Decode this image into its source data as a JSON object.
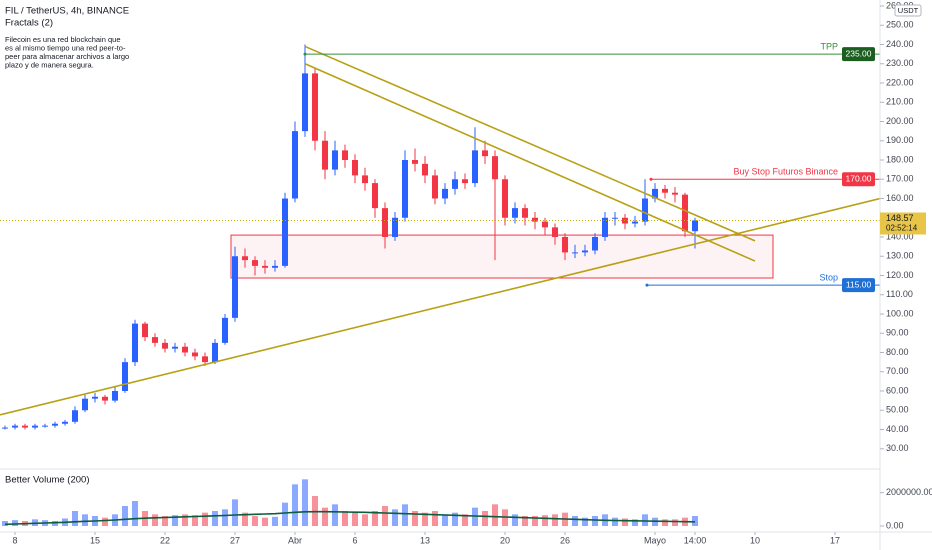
{
  "chart_data": {
    "type": "candlestick",
    "title": "FIL / TetherUS, 4h, BINANCE",
    "indicator": "Fractals (2)",
    "description": [
      "Filecoin es una red blockchain que",
      "es al mismo tiempo una red peer-to-",
      "peer para almacenar archivos a largo",
      "plazo y de manera segura."
    ],
    "currency": "USDT",
    "countdown": "02:52:14",
    "up_color": "#2962ff",
    "down_color": "#f23645",
    "open": [
      40.5,
      41,
      42,
      41,
      42,
      42,
      43,
      44,
      50,
      56,
      57,
      55,
      60,
      75,
      95,
      88,
      85,
      82,
      83,
      80,
      78,
      75,
      85,
      98,
      130,
      128,
      125,
      124,
      125,
      160,
      195,
      225,
      190,
      175,
      185,
      180,
      172,
      168,
      155,
      140,
      150,
      180,
      178,
      172,
      160,
      165,
      170,
      168,
      185,
      182,
      170,
      150,
      155,
      150,
      148,
      145,
      140,
      132,
      132,
      133,
      140,
      150,
      150,
      147,
      148,
      160,
      165,
      163,
      162,
      143
    ],
    "high": [
      42,
      43,
      43,
      43,
      43,
      44,
      45,
      52,
      58,
      59,
      58,
      62,
      77,
      97,
      96,
      90,
      87,
      85,
      85,
      82,
      80,
      87,
      100,
      135,
      134,
      130,
      128,
      128,
      163,
      200,
      240,
      228,
      195,
      190,
      188,
      183,
      176,
      170,
      158,
      153,
      185,
      186,
      182,
      175,
      168,
      174,
      173,
      197,
      190,
      185,
      172,
      158,
      157,
      153,
      150,
      147,
      142,
      136,
      136,
      142,
      153,
      153,
      152,
      151,
      170,
      168,
      167,
      166,
      163,
      150
    ],
    "low": [
      40,
      40,
      40,
      40,
      41,
      41,
      42,
      43,
      49,
      54,
      53,
      54,
      59,
      73,
      86,
      83,
      80,
      80,
      78,
      76,
      73,
      74,
      84,
      96,
      124,
      120,
      121,
      122,
      124,
      158,
      192,
      185,
      170,
      172,
      176,
      168,
      164,
      150,
      134,
      138,
      148,
      174,
      168,
      157,
      157,
      162,
      165,
      166,
      178,
      128,
      146,
      147,
      146,
      144,
      141,
      136,
      128,
      129,
      130,
      131,
      138,
      146,
      144,
      145,
      146,
      158,
      160,
      158,
      140,
      134
    ],
    "close": [
      41,
      42,
      41,
      42,
      42,
      43,
      44,
      50,
      56,
      57,
      55,
      60,
      75,
      95,
      88,
      85,
      82,
      83,
      80,
      78,
      75,
      85,
      98,
      130,
      128,
      125,
      124,
      125,
      160,
      195,
      225,
      190,
      175,
      185,
      180,
      172,
      168,
      155,
      140,
      150,
      180,
      178,
      172,
      160,
      165,
      170,
      168,
      185,
      182,
      170,
      150,
      155,
      150,
      148,
      145,
      140,
      132,
      132,
      133,
      140,
      150,
      150,
      147,
      148,
      160,
      165,
      163,
      162,
      143,
      148.57
    ],
    "xlim": [
      -0.5,
      87.5
    ],
    "xticks": [
      {
        "value": 1,
        "label": "8"
      },
      {
        "value": 9,
        "label": "15"
      },
      {
        "value": 16,
        "label": "22"
      },
      {
        "value": 23,
        "label": "27"
      },
      {
        "value": 29,
        "label": "Abr"
      },
      {
        "value": 35,
        "label": "6"
      },
      {
        "value": 42,
        "label": "13"
      },
      {
        "value": 50,
        "label": "20"
      },
      {
        "value": 56,
        "label": "26"
      },
      {
        "value": 65,
        "label": "Mayo"
      },
      {
        "value": 69,
        "label": "14:00"
      },
      {
        "value": 75,
        "label": "10"
      },
      {
        "value": 83,
        "label": "17"
      }
    ],
    "ylim": [
      20,
      260
    ],
    "yticks": [
      {
        "value": 30,
        "label": "30.00"
      },
      {
        "value": 40,
        "label": "40.00"
      },
      {
        "value": 50,
        "label": "50.00"
      },
      {
        "value": 60,
        "label": "60.00"
      },
      {
        "value": 70,
        "label": "70.00"
      },
      {
        "value": 80,
        "label": "80.00"
      },
      {
        "value": 90,
        "label": "90.00"
      },
      {
        "value": 100,
        "label": "100.00"
      },
      {
        "value": 110,
        "label": "110.00"
      },
      {
        "value": 120,
        "label": "120.00"
      },
      {
        "value": 130,
        "label": "130.00"
      },
      {
        "value": 140,
        "label": "140.00"
      },
      {
        "value": 150,
        "label": "150.00"
      },
      {
        "value": 160,
        "label": "160.00"
      },
      {
        "value": 170,
        "label": "170.00"
      },
      {
        "value": 180,
        "label": "180.00"
      },
      {
        "value": 190,
        "label": "190.00"
      },
      {
        "value": 200,
        "label": "200.00"
      },
      {
        "value": 210,
        "label": "210.00"
      },
      {
        "value": 220,
        "label": "220.00"
      },
      {
        "value": 230,
        "label": "230.00"
      },
      {
        "value": 240,
        "label": "240.00"
      },
      {
        "value": 250,
        "label": "250.00"
      },
      {
        "value": 260,
        "label": "260.00"
      }
    ],
    "trendlines": [
      {
        "color": "#b8a014",
        "points": [
          [
            30,
            239
          ],
          [
            75,
            138
          ]
        ]
      },
      {
        "color": "#b8a014",
        "points": [
          [
            30,
            230
          ],
          [
            75,
            127.5
          ]
        ]
      },
      {
        "color": "#b8a014",
        "points": [
          [
            -0.5,
            47.6
          ],
          [
            87.5,
            160
          ]
        ]
      }
    ],
    "box": {
      "color": "#f23645",
      "x": [
        22.6,
        76.8
      ],
      "y": [
        118.7,
        141
      ]
    },
    "hlines": [
      {
        "text": "TPP",
        "color": "#388e3c",
        "label_color": "#1b5e20",
        "start": 30,
        "price": {
          "value": 235,
          "label": "235.00"
        }
      },
      {
        "text": "Buy Stop Futuros Binance",
        "color": "#f23645",
        "label_color": "#f23645",
        "start": 64.6,
        "price": {
          "value": 170,
          "label": "170.00"
        }
      },
      {
        "text": "Stop",
        "color": "#1e6fd6",
        "label_color": "#1e6fd6",
        "start": 64.2,
        "price": {
          "value": 115,
          "label": "115.00"
        }
      }
    ],
    "volume": {
      "title": "Better Volume (200)",
      "ylim": [
        0,
        3000000
      ],
      "yticks": [
        {
          "value": 2000000,
          "label": "2000000.00"
        },
        {
          "value": 0,
          "label": "0.00"
        }
      ],
      "values": [
        300000,
        350000,
        300000,
        400000,
        350000,
        300000,
        450000,
        900000,
        700000,
        600000,
        500000,
        700000,
        1200000,
        1500000,
        900000,
        700000,
        600000,
        650000,
        700000,
        650000,
        800000,
        900000,
        1000000,
        1600000,
        800000,
        600000,
        500000,
        550000,
        1400000,
        2500000,
        2800000,
        1800000,
        1100000,
        1300000,
        900000,
        800000,
        700000,
        900000,
        1200000,
        1000000,
        1300000,
        900000,
        800000,
        900000,
        700000,
        800000,
        700000,
        1100000,
        900000,
        1300000,
        1000000,
        700000,
        600000,
        600000,
        650000,
        700000,
        800000,
        600000,
        500000,
        600000,
        700000,
        500000,
        450000,
        400000,
        700000,
        500000,
        400000,
        400000,
        500000,
        600000
      ],
      "ma_color": "#0b5d3b",
      "ma": [
        100000,
        120000,
        140000,
        160000,
        180000,
        200000,
        220000,
        250000,
        280000,
        300000,
        330000,
        360000,
        400000,
        440000,
        470000,
        490000,
        510000,
        530000,
        550000,
        570000,
        590000,
        610000,
        630000,
        660000,
        680000,
        700000,
        720000,
        740000,
        780000,
        820000,
        850000,
        860000,
        860000,
        850000,
        840000,
        830000,
        820000,
        800000,
        780000,
        760000,
        740000,
        720000,
        700000,
        680000,
        660000,
        640000,
        620000,
        600000,
        580000,
        560000,
        540000,
        520000,
        500000,
        480000,
        460000,
        440000,
        420000,
        400000,
        380000,
        360000,
        340000,
        330000,
        320000,
        310000,
        300000,
        290000,
        280000,
        270000,
        260000,
        250000
      ]
    }
  }
}
